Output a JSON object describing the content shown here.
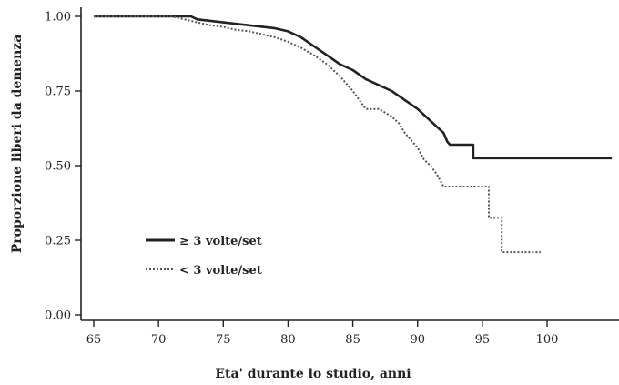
{
  "chart_data": {
    "type": "line",
    "title": "",
    "xlabel": "Eta' durante lo studio, anni",
    "ylabel": "Proporzione liberi da demenza",
    "xlim": [
      64,
      105
    ],
    "ylim": [
      0,
      1.02
    ],
    "xticks": [
      65,
      70,
      75,
      80,
      85,
      90,
      95,
      100
    ],
    "xtick_labels": [
      "65",
      "70",
      "75",
      "80",
      "85",
      "90",
      "95",
      "100"
    ],
    "yticks": [
      0.0,
      0.25,
      0.5,
      0.75,
      1.0
    ],
    "ytick_labels": [
      "0.00",
      "0.25",
      "0.50",
      "0.75",
      "1.00"
    ],
    "grid": false,
    "legend_position": "bottom-left",
    "series": [
      {
        "name": "≥ 3 volte/set",
        "style": "solid",
        "color": "#222222",
        "x": [
          65,
          72.5,
          73,
          75,
          77,
          79,
          80,
          81,
          82,
          83,
          84,
          85,
          86,
          87,
          88,
          89,
          90,
          90.5,
          91,
          91.5,
          92,
          92.3,
          92.5,
          94.3,
          94.3,
          96,
          98,
          100,
          105
        ],
        "y": [
          1.0,
          1.0,
          0.99,
          0.98,
          0.97,
          0.96,
          0.95,
          0.93,
          0.9,
          0.87,
          0.84,
          0.82,
          0.79,
          0.77,
          0.75,
          0.72,
          0.69,
          0.67,
          0.65,
          0.63,
          0.61,
          0.58,
          0.57,
          0.57,
          0.525,
          0.525,
          0.525,
          0.525,
          0.525
        ]
      },
      {
        "name": "< 3 volte/set",
        "style": "dotted",
        "color": "#555555",
        "x": [
          65,
          71,
          72,
          73,
          74,
          75,
          76,
          77,
          78,
          79,
          80,
          81,
          82,
          83,
          84,
          85,
          86,
          87,
          88,
          88.6,
          89,
          89.4,
          90,
          90.5,
          91,
          91.5,
          92,
          94.2,
          94.2,
          95.5,
          95.5,
          96.5,
          96.5,
          99.5
        ],
        "y": [
          1.0,
          1.0,
          0.99,
          0.98,
          0.97,
          0.965,
          0.955,
          0.95,
          0.94,
          0.93,
          0.915,
          0.895,
          0.87,
          0.84,
          0.8,
          0.75,
          0.69,
          0.69,
          0.665,
          0.64,
          0.61,
          0.59,
          0.56,
          0.52,
          0.5,
          0.47,
          0.43,
          0.43,
          0.43,
          0.43,
          0.325,
          0.325,
          0.21,
          0.21
        ]
      }
    ]
  }
}
